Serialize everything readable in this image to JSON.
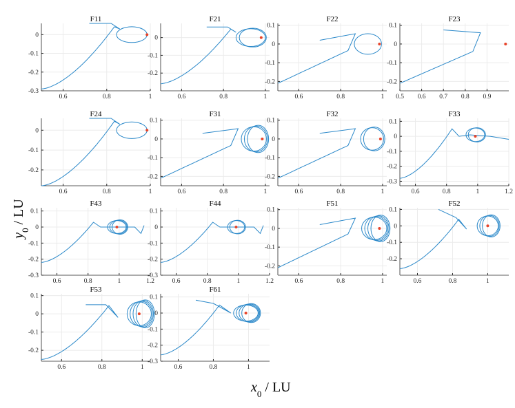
{
  "figure": {
    "xlabel_main": "x",
    "xlabel_sub": "0",
    "xlabel_unit": " / LU",
    "ylabel_main": "y",
    "ylabel_sub": "0",
    "ylabel_unit": " / LU"
  },
  "colors": {
    "curve": "#2a88c9",
    "marker": "#e8442a",
    "grid": "#ebebeb",
    "axis": "#262626"
  },
  "chart_data": [
    {
      "type": "line",
      "title": "F11",
      "xlim": [
        0.5,
        1.0
      ],
      "ylim": [
        -0.3,
        0.06
      ],
      "xticks": [
        0.6,
        0.8,
        1
      ],
      "xtick_labels": [
        "0.6",
        "0.8",
        "1"
      ],
      "yticks": [
        -0.3,
        -0.2,
        -0.1,
        0
      ],
      "ytick_labels": [
        "-0.3",
        "-0.2",
        "-0.1",
        "0"
      ],
      "curve": {
        "kind": "a",
        "A": -0.29,
        "B": 0.0,
        "C": 0.042,
        "D": 0.05
      },
      "loops": [
        {
          "cx": 0.915,
          "cy": 0.0,
          "rx": 0.07,
          "ry": 0.042,
          "n": 1
        }
      ],
      "point": [
        0.985,
        0.0
      ]
    },
    {
      "type": "line",
      "title": "F21",
      "xlim": [
        0.5,
        1.02
      ],
      "ylim": [
        -0.3,
        0.08
      ],
      "xticks": [
        0.6,
        0.8,
        1
      ],
      "xtick_labels": [
        "0.6",
        "0.8",
        "1"
      ],
      "yticks": [
        -0.2,
        -0.1,
        0
      ],
      "ytick_labels": [
        "-0.2",
        "-0.1",
        "0"
      ],
      "curve": {
        "kind": "a",
        "A": -0.26,
        "B": 0.0,
        "C": 0.048,
        "D": 0.04
      },
      "loops": [
        {
          "cx": 0.93,
          "cy": 0.0,
          "rx": 0.07,
          "ry": 0.05,
          "n": 2
        }
      ],
      "point": [
        0.98,
        0.0
      ]
    },
    {
      "type": "line",
      "title": "F22",
      "xlim": [
        0.5,
        1.02
      ],
      "ylim": [
        -0.25,
        0.11
      ],
      "xticks": [
        0.6,
        0.8,
        1
      ],
      "xtick_labels": [
        "0.6",
        "0.8",
        "1"
      ],
      "yticks": [
        -0.2,
        -0.1,
        0,
        0.1
      ],
      "ytick_labels": [
        "-0.2",
        "-0.1",
        "0",
        "0.1"
      ],
      "curve": {
        "kind": "b",
        "A": -0.21,
        "B": -0.035,
        "C": 0.055,
        "D": 0.02
      },
      "loops": [
        {
          "cx": 0.93,
          "cy": 0.0,
          "rx": 0.065,
          "ry": 0.055,
          "n": 1
        }
      ],
      "point": [
        0.985,
        0.0
      ]
    },
    {
      "type": "line",
      "title": "F23",
      "xlim": [
        0.5,
        1.0
      ],
      "ylim": [
        -0.25,
        0.11
      ],
      "xticks": [
        0.5,
        0.6,
        0.7,
        0.8,
        0.9
      ],
      "xtick_labels": [
        "0.5",
        "0.6",
        "0.7",
        "0.8",
        "0.9"
      ],
      "yticks": [
        -0.2,
        -0.1,
        0,
        0.1
      ],
      "ytick_labels": [
        "-0.2",
        "-0.1",
        "0",
        "0.1"
      ],
      "curve": {
        "kind": "c",
        "A": -0.21,
        "B": -0.04,
        "C": 0.06,
        "D": 0.075
      },
      "loops": [],
      "point": [
        0.985,
        0.0
      ]
    },
    {
      "type": "line",
      "title": "F24",
      "xlim": [
        0.5,
        1.0
      ],
      "ylim": [
        -0.28,
        0.06
      ],
      "xticks": [
        0.6,
        0.8,
        1
      ],
      "xtick_labels": [
        "0.6",
        "0.8",
        "1"
      ],
      "yticks": [
        -0.2,
        -0.1,
        0
      ],
      "ytick_labels": [
        "-0.2",
        "-0.1",
        "0"
      ],
      "curve": {
        "kind": "a",
        "A": -0.28,
        "B": 0.0,
        "C": 0.045,
        "D": 0.05
      },
      "loops": [
        {
          "cx": 0.915,
          "cy": 0.0,
          "rx": 0.07,
          "ry": 0.042,
          "n": 1
        }
      ],
      "point": [
        0.985,
        0.0
      ]
    },
    {
      "type": "line",
      "title": "F31",
      "xlim": [
        0.5,
        1.02
      ],
      "ylim": [
        -0.25,
        0.11
      ],
      "xticks": [
        0.6,
        0.8,
        1
      ],
      "xtick_labels": [
        "0.6",
        "0.8",
        "1"
      ],
      "yticks": [
        -0.2,
        -0.1,
        0,
        0.1
      ],
      "ytick_labels": [
        "-0.2",
        "-0.1",
        "0",
        "0.1"
      ],
      "curve": {
        "kind": "b",
        "A": -0.21,
        "B": -0.035,
        "C": 0.055,
        "D": 0.03
      },
      "loops": [
        {
          "cx": 0.945,
          "cy": 0.0,
          "rx": 0.06,
          "ry": 0.065,
          "n": 3
        }
      ],
      "point": [
        0.985,
        0.0
      ]
    },
    {
      "type": "line",
      "title": "F32",
      "xlim": [
        0.5,
        1.02
      ],
      "ylim": [
        -0.25,
        0.11
      ],
      "xticks": [
        0.6,
        0.8,
        1
      ],
      "xtick_labels": [
        "0.6",
        "0.8",
        "1"
      ],
      "yticks": [
        -0.2,
        -0.1,
        0,
        0.1
      ],
      "ytick_labels": [
        "-0.2",
        "-0.1",
        "0",
        "0.1"
      ],
      "curve": {
        "kind": "b",
        "A": -0.21,
        "B": -0.035,
        "C": 0.055,
        "D": 0.03
      },
      "loops": [
        {
          "cx": 0.95,
          "cy": 0.0,
          "rx": 0.055,
          "ry": 0.06,
          "n": 2
        }
      ],
      "point": [
        0.99,
        0.0
      ]
    },
    {
      "type": "line",
      "title": "F33",
      "xlim": [
        0.5,
        1.2
      ],
      "ylim": [
        -0.33,
        0.12
      ],
      "xticks": [
        0.6,
        0.8,
        1,
        1.2
      ],
      "xtick_labels": [
        "0.6",
        "0.8",
        "1",
        "1.2"
      ],
      "yticks": [
        -0.3,
        -0.2,
        -0.1,
        0,
        0.1
      ],
      "ytick_labels": [
        "-0.3",
        "-0.2",
        "-0.1",
        "0",
        "0.1"
      ],
      "curve": {
        "kind": "d",
        "A": -0.28,
        "B": 0.0,
        "C": 0.05,
        "D": 0.0
      },
      "loops": [
        {
          "cx": 0.985,
          "cy": 0.01,
          "rx": 0.06,
          "ry": 0.045,
          "n": 2
        }
      ],
      "point": [
        0.985,
        0.0
      ]
    },
    {
      "type": "line",
      "title": "F43",
      "xlim": [
        0.5,
        1.2
      ],
      "ylim": [
        -0.3,
        0.12
      ],
      "xticks": [
        0.6,
        0.8,
        1,
        1.2
      ],
      "xtick_labels": [
        "0.6",
        "0.8",
        "1",
        "1.2"
      ],
      "yticks": [
        -0.3,
        -0.2,
        -0.1,
        0,
        0.1
      ],
      "ytick_labels": [
        "-0.3",
        "-0.2",
        "-0.1",
        "0",
        "0.1"
      ],
      "curve": {
        "kind": "e",
        "A": -0.22,
        "B": 0.0,
        "C": 0.03,
        "D": 0.0
      },
      "loops": [
        {
          "cx": 0.985,
          "cy": 0.0,
          "rx": 0.06,
          "ry": 0.04,
          "n": 3
        }
      ],
      "point": [
        0.985,
        0.0
      ]
    },
    {
      "type": "line",
      "title": "F44",
      "xlim": [
        0.5,
        1.2
      ],
      "ylim": [
        -0.3,
        0.12
      ],
      "xticks": [
        0.6,
        0.8,
        1,
        1.2
      ],
      "xtick_labels": [
        "0.6",
        "0.8",
        "1",
        "1.2"
      ],
      "yticks": [
        -0.3,
        -0.2,
        -0.1,
        0,
        0.1
      ],
      "ytick_labels": [
        "-0.3",
        "-0.2",
        "-0.1",
        "0",
        "0.1"
      ],
      "curve": {
        "kind": "e",
        "A": -0.22,
        "B": 0.0,
        "C": 0.03,
        "D": 0.0
      },
      "loops": [
        {
          "cx": 0.985,
          "cy": 0.0,
          "rx": 0.055,
          "ry": 0.04,
          "n": 2
        }
      ],
      "point": [
        0.985,
        0.0
      ]
    },
    {
      "type": "line",
      "title": "F51",
      "xlim": [
        0.5,
        1.02
      ],
      "ylim": [
        -0.25,
        0.11
      ],
      "xticks": [
        0.6,
        0.8,
        1
      ],
      "xtick_labels": [
        "0.6",
        "0.8",
        "1"
      ],
      "yticks": [
        -0.2,
        -0.1,
        0,
        0.1
      ],
      "ytick_labels": [
        "-0.2",
        "-0.1",
        "0",
        "0.1"
      ],
      "curve": {
        "kind": "b",
        "A": -0.21,
        "B": -0.03,
        "C": 0.055,
        "D": 0.02
      },
      "loops": [
        {
          "cx": 0.96,
          "cy": 0.0,
          "rx": 0.06,
          "ry": 0.06,
          "n": 4
        }
      ],
      "point": [
        0.985,
        0.0
      ]
    },
    {
      "type": "line",
      "title": "F52",
      "xlim": [
        0.5,
        1.12
      ],
      "ylim": [
        -0.3,
        0.11
      ],
      "xticks": [
        0.6,
        0.8,
        1
      ],
      "xtick_labels": [
        "0.6",
        "0.8",
        "1"
      ],
      "yticks": [
        -0.2,
        -0.1,
        0,
        0.1
      ],
      "ytick_labels": [
        "-0.2",
        "-0.1",
        "0",
        "0.1"
      ],
      "curve": {
        "kind": "f",
        "A": -0.26,
        "B": 0.0,
        "C": 0.04,
        "D": 0.1
      },
      "loops": [
        {
          "cx": 1.0,
          "cy": 0.0,
          "rx": 0.06,
          "ry": 0.06,
          "n": 3
        }
      ],
      "point": [
        1.0,
        0.0
      ]
    },
    {
      "type": "line",
      "title": "F53",
      "xlim": [
        0.5,
        1.04
      ],
      "ylim": [
        -0.26,
        0.11
      ],
      "xticks": [
        0.6,
        0.8,
        1
      ],
      "xtick_labels": [
        "0.6",
        "0.8",
        "1"
      ],
      "yticks": [
        -0.2,
        -0.1,
        0,
        0.1
      ],
      "ytick_labels": [
        "-0.2",
        "-0.1",
        "0",
        "0.1"
      ],
      "curve": {
        "kind": "f",
        "A": -0.25,
        "B": 0.0,
        "C": 0.045,
        "D": 0.05
      },
      "loops": [
        {
          "cx": 0.985,
          "cy": 0.0,
          "rx": 0.06,
          "ry": 0.065,
          "n": 4
        }
      ],
      "point": [
        0.985,
        0.0
      ]
    },
    {
      "type": "line",
      "title": "F61",
      "xlim": [
        0.5,
        1.12
      ],
      "ylim": [
        -0.3,
        0.12
      ],
      "xticks": [
        0.6,
        0.8,
        1
      ],
      "xtick_labels": [
        "0.6",
        "0.8",
        "1"
      ],
      "yticks": [
        -0.3,
        -0.2,
        -0.1,
        0,
        0.1
      ],
      "ytick_labels": [
        "-0.3",
        "-0.2",
        "-0.1",
        "0",
        "0.1"
      ],
      "curve": {
        "kind": "g",
        "A": -0.26,
        "B": 0.0,
        "C": 0.05,
        "D": 0.08
      },
      "loops": [
        {
          "cx": 0.985,
          "cy": 0.0,
          "rx": 0.07,
          "ry": 0.05,
          "n": 4
        }
      ],
      "point": [
        0.985,
        0.0
      ]
    }
  ]
}
